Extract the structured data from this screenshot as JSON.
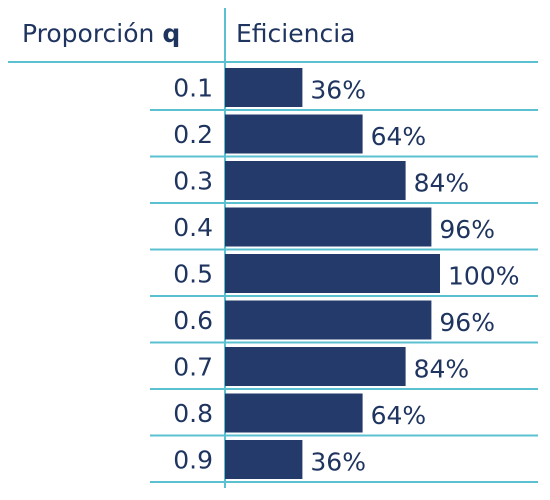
{
  "header": {
    "left_label": "Proporción ",
    "left_symbol": "q",
    "right_label": "Eficiencia"
  },
  "colors": {
    "bar": "#233a6b",
    "rule": "#5bc0d0",
    "text": "#1f3560"
  },
  "chart_data": {
    "type": "bar",
    "orientation": "horizontal",
    "categories": [
      "0.1",
      "0.2",
      "0.3",
      "0.4",
      "0.5",
      "0.6",
      "0.7",
      "0.8",
      "0.9"
    ],
    "values": [
      36,
      64,
      84,
      96,
      100,
      96,
      84,
      64,
      36
    ],
    "value_labels": [
      "36%",
      "64%",
      "84%",
      "96%",
      "100%",
      "96%",
      "84%",
      "64%",
      "36%"
    ],
    "xlim": [
      0,
      100
    ],
    "grid": false,
    "legend": "none"
  }
}
